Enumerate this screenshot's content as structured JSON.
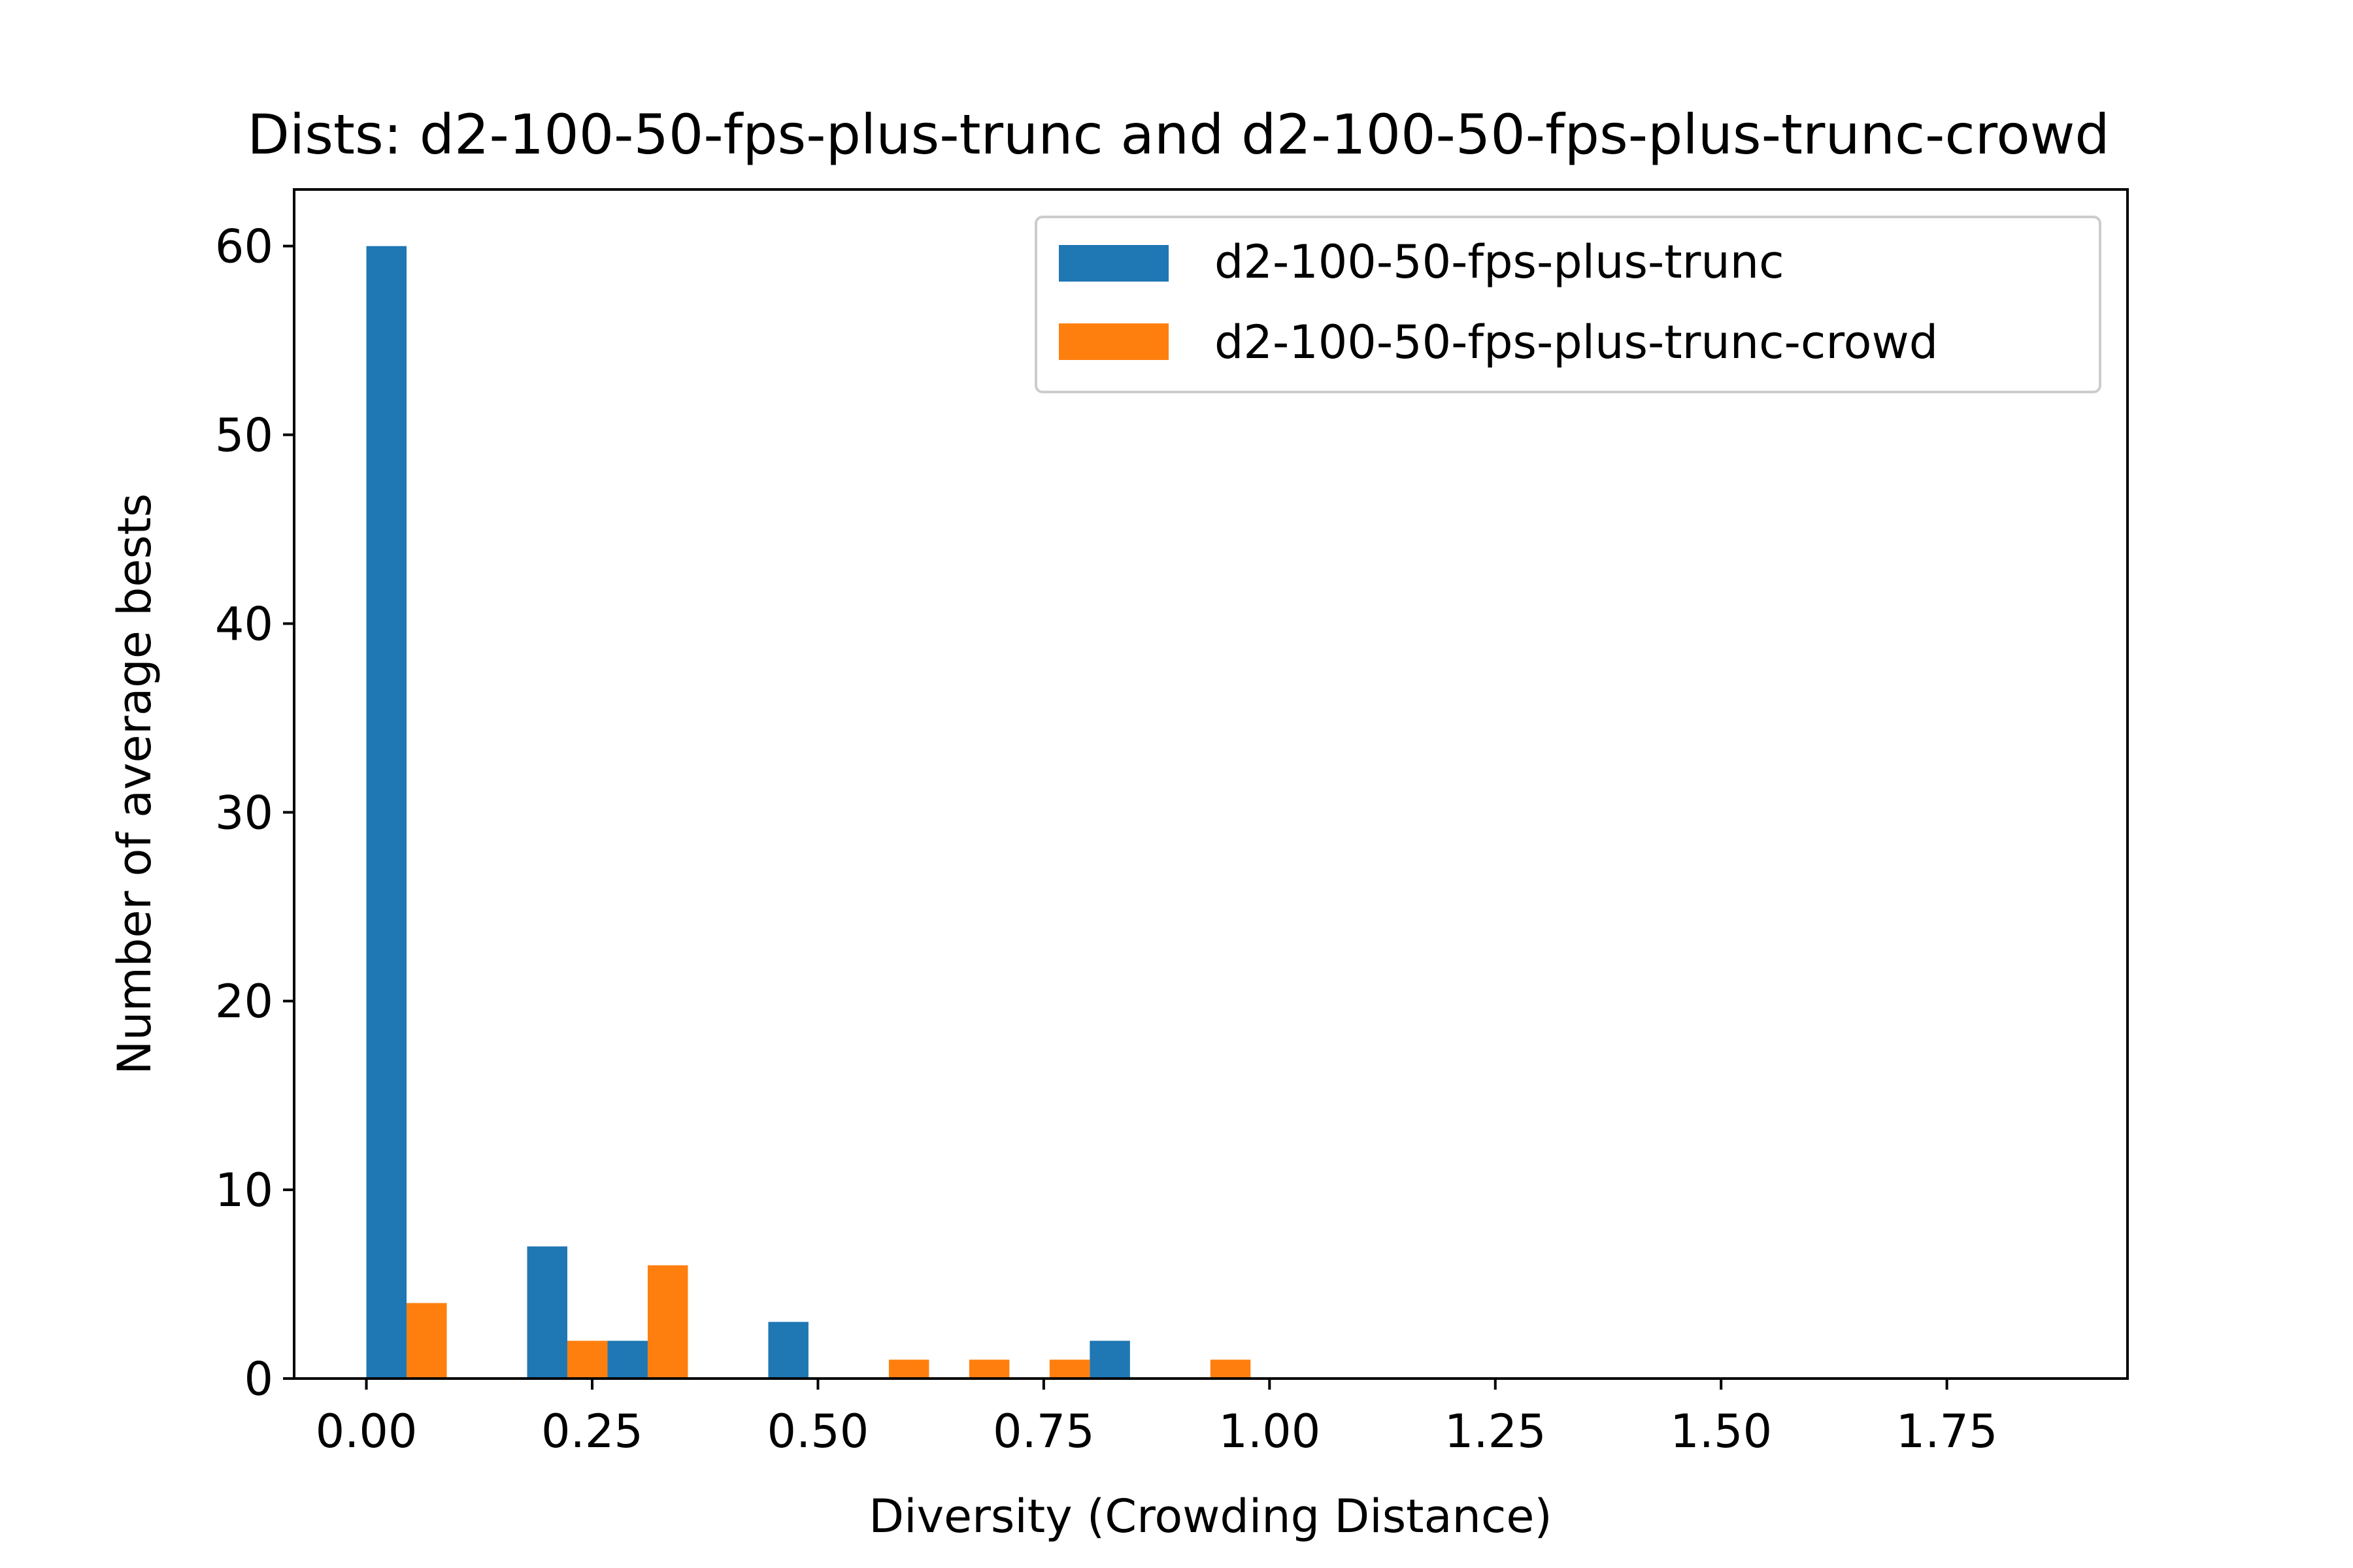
{
  "chart_data": {
    "type": "bar",
    "title": "Dists: d2-100-50-fps-plus-trunc and d2-100-50-fps-plus-trunc-crowd",
    "xlabel": "Diversity (Crowding Distance)",
    "ylabel": "Number of average bests",
    "xlim": [
      -0.08,
      1.95
    ],
    "ylim": [
      0,
      63
    ],
    "xticks": [
      0.0,
      0.25,
      0.5,
      0.75,
      1.0,
      1.25,
      1.5,
      1.75
    ],
    "xtick_labels": [
      "0.00",
      "0.25",
      "0.50",
      "0.75",
      "1.00",
      "1.25",
      "1.50",
      "1.75"
    ],
    "yticks": [
      0,
      10,
      20,
      30,
      40,
      50,
      60
    ],
    "ytick_labels": [
      "0",
      "10",
      "20",
      "30",
      "40",
      "50",
      "60"
    ],
    "bin_edges": [
      0.0,
      0.089,
      0.178,
      0.267,
      0.356,
      0.445,
      0.534,
      0.623,
      0.712,
      0.801,
      0.89,
      0.979
    ],
    "legend_position": "top-right",
    "grid": false,
    "series": [
      {
        "name": "d2-100-50-fps-plus-trunc",
        "color": "#1f77b4",
        "values": [
          60,
          0,
          7,
          2,
          0,
          3,
          0,
          0,
          0,
          2,
          0
        ]
      },
      {
        "name": "d2-100-50-fps-plus-trunc-crowd",
        "color": "#ff7f0e",
        "values": [
          4,
          0,
          2,
          6,
          0,
          0,
          1,
          1,
          1,
          0,
          1
        ]
      }
    ]
  }
}
